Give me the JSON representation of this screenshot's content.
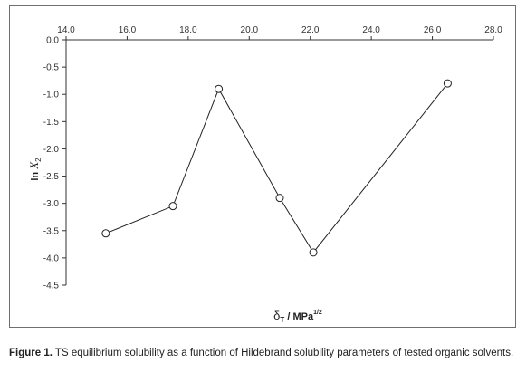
{
  "chart_data": {
    "type": "line",
    "xlabel_symbol": "δ",
    "xlabel_sub": "T",
    "xlabel_unit": " / MPa",
    "xlabel_sup": "1/2",
    "ylabel_prefix": "ln ",
    "ylabel_var": "X",
    "ylabel_sub": "2",
    "x_axis_position": "top",
    "xlim": [
      14.0,
      28.0
    ],
    "ylim": [
      -4.5,
      0.0
    ],
    "x_ticks": [
      "14.0",
      "16.0",
      "18.0",
      "20.0",
      "22.0",
      "24.0",
      "26.0",
      "28.0"
    ],
    "y_ticks": [
      "0.0",
      "-0.5",
      "-1.0",
      "-1.5",
      "-2.0",
      "-2.5",
      "-3.0",
      "-3.5",
      "-4.0",
      "-4.5"
    ],
    "grid": false,
    "marker": "open-circle",
    "series": [
      {
        "x": [
          15.3,
          17.5,
          19.0,
          21.0,
          22.1,
          26.5
        ],
        "y": [
          -3.55,
          -3.05,
          -0.9,
          -2.9,
          -3.9,
          -0.8
        ]
      }
    ]
  },
  "caption": {
    "label": "Figure 1.",
    "text": " TS equilibrium solubility as a function of Hildebrand solubility parameters of tested organic solvents."
  },
  "colors": {
    "axis": "#333333",
    "line": "#222222",
    "frame": "#6f6f6f"
  }
}
